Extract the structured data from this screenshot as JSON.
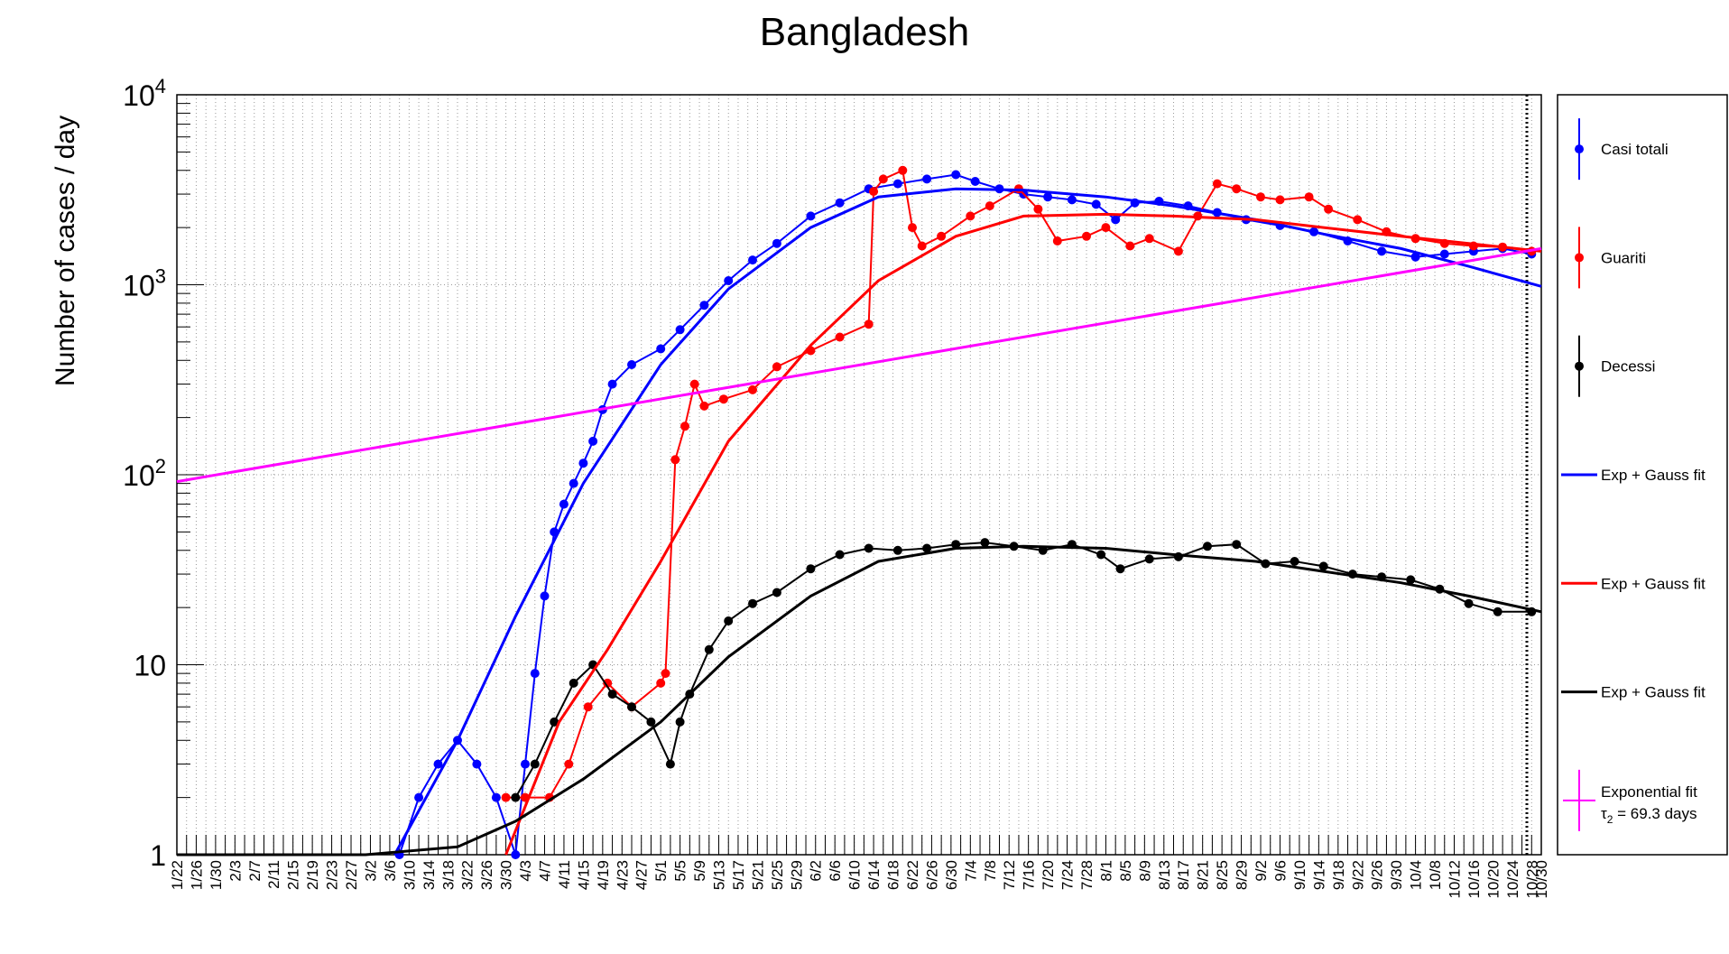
{
  "chart_data": {
    "type": "line",
    "title": "Bangladesh",
    "xlabel": "",
    "ylabel": "Number of cases / day",
    "y_scale": "log",
    "ylim": [
      1,
      10000
    ],
    "x_range": [
      "1/22",
      "10/30"
    ],
    "grid": true,
    "legend_position": "right",
    "y_ticks": [
      {
        "value": 1,
        "base": "1",
        "exp": ""
      },
      {
        "value": 10,
        "base": "10",
        "exp": ""
      },
      {
        "value": 100,
        "base": "10",
        "exp": "2"
      },
      {
        "value": 1000,
        "base": "10",
        "exp": "3"
      },
      {
        "value": 10000,
        "base": "10",
        "exp": "4"
      }
    ],
    "x_tick_labels": [
      "1/22",
      "1/26",
      "1/30",
      "2/3",
      "2/7",
      "2/11",
      "2/15",
      "2/19",
      "2/23",
      "2/27",
      "3/2",
      "3/6",
      "3/10",
      "3/14",
      "3/18",
      "3/22",
      "3/26",
      "3/30",
      "4/3",
      "4/7",
      "4/11",
      "4/15",
      "4/19",
      "4/23",
      "4/27",
      "5/1",
      "5/5",
      "5/9",
      "5/13",
      "5/17",
      "5/21",
      "5/25",
      "5/29",
      "6/2",
      "6/6",
      "6/10",
      "6/14",
      "6/18",
      "6/22",
      "6/26",
      "6/30",
      "7/4",
      "7/8",
      "7/12",
      "7/16",
      "7/20",
      "7/24",
      "7/28",
      "8/1",
      "8/5",
      "8/9",
      "8/13",
      "8/17",
      "8/21",
      "8/25",
      "8/29",
      "9/2",
      "9/6",
      "9/10",
      "9/14",
      "9/18",
      "9/22",
      "9/26",
      "9/30",
      "10/4",
      "10/8",
      "10/12",
      "10/16",
      "10/20",
      "10/24",
      "10/28",
      "10/30"
    ],
    "series": [
      {
        "name": "Casi totali",
        "kind": "points",
        "color": "#0000ff",
        "x": [
          "3/8",
          "3/12",
          "3/16",
          "3/20",
          "3/24",
          "3/28",
          "4/1",
          "4/3",
          "4/5",
          "4/7",
          "4/9",
          "4/11",
          "4/13",
          "4/15",
          "4/17",
          "4/19",
          "4/21",
          "4/25",
          "5/1",
          "5/5",
          "5/10",
          "5/15",
          "5/20",
          "5/25",
          "6/1",
          "6/7",
          "6/13",
          "6/19",
          "6/25",
          "7/1",
          "7/5",
          "7/10",
          "7/15",
          "7/20",
          "7/25",
          "7/30",
          "8/3",
          "8/7",
          "8/12",
          "8/18",
          "8/24",
          "8/30",
          "9/6",
          "9/13",
          "9/20",
          "9/27",
          "10/4",
          "10/10",
          "10/16",
          "10/22",
          "10/28"
        ],
        "y": [
          1,
          2,
          3,
          4,
          3,
          2,
          1,
          3,
          9,
          23,
          50,
          70,
          90,
          115,
          150,
          220,
          300,
          380,
          460,
          580,
          780,
          1050,
          1350,
          1650,
          2300,
          2700,
          3200,
          3400,
          3600,
          3800,
          3500,
          3200,
          3000,
          2900,
          2800,
          2650,
          2200,
          2700,
          2750,
          2600,
          2400,
          2200,
          2050,
          1900,
          1700,
          1500,
          1400,
          1450,
          1500,
          1550,
          1450
        ]
      },
      {
        "name": "Guariti",
        "kind": "points",
        "color": "#ff0000",
        "x": [
          "3/30",
          "4/3",
          "4/8",
          "4/12",
          "4/16",
          "4/20",
          "4/25",
          "5/1",
          "5/2",
          "5/4",
          "5/6",
          "5/8",
          "5/10",
          "5/14",
          "5/20",
          "5/25",
          "6/1",
          "6/7",
          "6/13",
          "6/14",
          "6/16",
          "6/20",
          "6/22",
          "6/24",
          "6/28",
          "7/4",
          "7/8",
          "7/14",
          "7/18",
          "7/22",
          "7/28",
          "8/1",
          "8/6",
          "8/10",
          "8/16",
          "8/20",
          "8/24",
          "8/28",
          "9/2",
          "9/6",
          "9/12",
          "9/16",
          "9/22",
          "9/28",
          "10/4",
          "10/10",
          "10/16",
          "10/22",
          "10/28"
        ],
        "y": [
          2,
          2,
          2,
          3,
          6,
          8,
          6,
          8,
          9,
          120,
          180,
          300,
          230,
          250,
          280,
          370,
          450,
          530,
          620,
          3100,
          3600,
          4000,
          2000,
          1600,
          1800,
          2300,
          2600,
          3200,
          2500,
          1700,
          1800,
          2000,
          1600,
          1750,
          1500,
          2300,
          3400,
          3200,
          2900,
          2800,
          2900,
          2500,
          2200,
          1900,
          1750,
          1650,
          1600,
          1580,
          1500
        ]
      },
      {
        "name": "Decessi",
        "kind": "points",
        "color": "#000000",
        "x": [
          "4/1",
          "4/5",
          "4/9",
          "4/13",
          "4/17",
          "4/21",
          "4/25",
          "4/29",
          "5/3",
          "5/5",
          "5/7",
          "5/11",
          "5/15",
          "5/20",
          "5/25",
          "6/1",
          "6/7",
          "6/13",
          "6/19",
          "6/25",
          "7/1",
          "7/7",
          "7/13",
          "7/19",
          "7/25",
          "7/31",
          "8/4",
          "8/10",
          "8/16",
          "8/22",
          "8/28",
          "9/3",
          "9/9",
          "9/15",
          "9/21",
          "9/27",
          "10/3",
          "10/9",
          "10/15",
          "10/21",
          "10/28"
        ],
        "y": [
          2,
          3,
          5,
          8,
          10,
          7,
          6,
          5,
          3,
          5,
          7,
          12,
          17,
          21,
          24,
          32,
          38,
          41,
          40,
          41,
          43,
          44,
          42,
          40,
          43,
          38,
          32,
          36,
          37,
          42,
          43,
          34,
          35,
          33,
          30,
          29,
          28,
          25,
          21,
          19,
          19
        ]
      },
      {
        "name": "Exp + Gauss fit",
        "kind": "line",
        "color": "#0000ff",
        "x": [
          "3/7",
          "3/20",
          "4/1",
          "4/15",
          "5/1",
          "5/15",
          "6/1",
          "6/15",
          "7/1",
          "7/15",
          "8/1",
          "8/15",
          "9/1",
          "9/15",
          "10/1",
          "10/15",
          "10/30"
        ],
        "y": [
          1,
          4,
          18,
          90,
          380,
          950,
          2000,
          2900,
          3200,
          3150,
          2900,
          2600,
          2200,
          1850,
          1550,
          1250,
          980
        ]
      },
      {
        "name": "Exp + Gauss fit",
        "kind": "line",
        "color": "#ff0000",
        "x": [
          "3/30",
          "4/10",
          "4/20",
          "5/1",
          "5/15",
          "6/1",
          "6/15",
          "7/1",
          "7/15",
          "8/1",
          "8/15",
          "9/1",
          "9/15",
          "10/1",
          "10/15",
          "10/30"
        ],
        "y": [
          1,
          5,
          12,
          35,
          150,
          480,
          1050,
          1800,
          2300,
          2350,
          2300,
          2200,
          2000,
          1800,
          1650,
          1500
        ]
      },
      {
        "name": "Exp + Gauss fit",
        "kind": "line",
        "color": "#000000",
        "x": [
          "1/22",
          "3/1",
          "3/20",
          "4/1",
          "4/15",
          "5/1",
          "5/15",
          "6/1",
          "6/15",
          "7/1",
          "7/15",
          "8/1",
          "8/15",
          "9/1",
          "9/15",
          "10/1",
          "10/15",
          "10/30"
        ],
        "y": [
          1,
          1,
          1.1,
          1.5,
          2.5,
          5,
          11,
          23,
          35,
          41,
          42,
          41,
          38,
          35,
          31,
          27,
          23,
          19
        ]
      },
      {
        "name": "Exponential fit",
        "kind": "line",
        "color": "#ff00ff",
        "x": [
          "1/22",
          "10/30"
        ],
        "y": [
          92,
          1550
        ]
      }
    ],
    "legend": [
      {
        "label": "Casi totali",
        "color": "#0000ff",
        "style": "marker"
      },
      {
        "label": "Guariti",
        "color": "#ff0000",
        "style": "marker"
      },
      {
        "label": "Decessi",
        "color": "#000000",
        "style": "marker"
      },
      {
        "label": "Exp + Gauss fit",
        "color": "#0000ff",
        "style": "line"
      },
      {
        "label": "Exp + Gauss fit",
        "color": "#ff0000",
        "style": "line"
      },
      {
        "label": "Exp + Gauss fit",
        "color": "#000000",
        "style": "line"
      },
      {
        "label": "Exponential fit",
        "label2_base": "τ",
        "label2_sub": "2",
        "label2_rest": " = 69.3 days",
        "color": "#ff00ff",
        "style": "errcross"
      }
    ]
  }
}
